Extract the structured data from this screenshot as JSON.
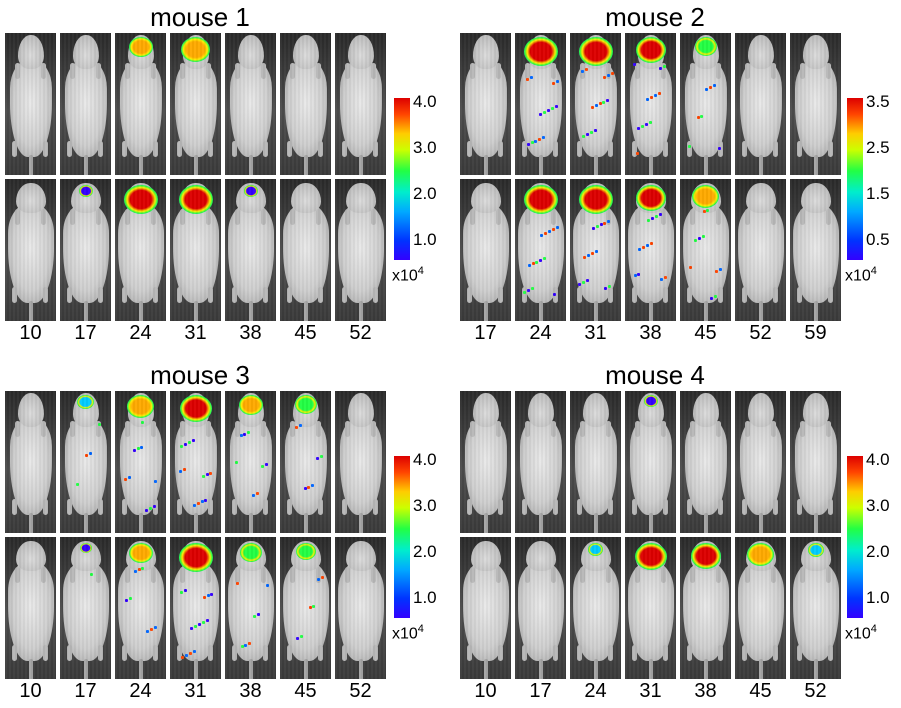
{
  "panels": [
    {
      "title": "mouse 1",
      "days": [
        "10",
        "17",
        "24",
        "31",
        "38",
        "45",
        "52"
      ],
      "scale_ticks": [
        "4.0",
        "3.0",
        "2.0",
        "1.0"
      ],
      "scale_unit_base": "x10",
      "scale_unit_exp": "4",
      "signal": {
        "top": [
          0,
          0,
          0.6,
          0.8,
          0,
          0,
          0
        ],
        "bottom": [
          0,
          0.15,
          1.0,
          1.0,
          0.15,
          0,
          0
        ]
      }
    },
    {
      "title": "mouse 2",
      "days": [
        "17",
        "24",
        "31",
        "38",
        "45",
        "52",
        "59"
      ],
      "scale_ticks": [
        "3.5",
        "2.5",
        "1.5",
        "0.5"
      ],
      "scale_unit_base": "x10",
      "scale_unit_exp": "4",
      "signal": {
        "top": [
          0,
          1.0,
          1.0,
          0.85,
          0.5,
          0,
          0
        ],
        "bottom": [
          0,
          1.0,
          1.0,
          0.85,
          0.7,
          0,
          0
        ]
      }
    },
    {
      "title": "mouse 3",
      "days": [
        "10",
        "17",
        "24",
        "31",
        "38",
        "45",
        "52"
      ],
      "scale_ticks": [
        "4.0",
        "3.0",
        "2.0",
        "1.0"
      ],
      "scale_unit_base": "x10",
      "scale_unit_exp": "4",
      "signal": {
        "top": [
          0,
          0.3,
          0.7,
          0.9,
          0.6,
          0.5,
          0
        ],
        "bottom": [
          0,
          0.1,
          0.6,
          1.0,
          0.5,
          0.4,
          0
        ]
      }
    },
    {
      "title": "mouse 4",
      "days": [
        "10",
        "17",
        "24",
        "31",
        "38",
        "45",
        "52"
      ],
      "scale_ticks": [
        "4.0",
        "3.0",
        "2.0",
        "1.0"
      ],
      "scale_unit_base": "x10",
      "scale_unit_exp": "4",
      "signal": {
        "top": [
          0,
          0,
          0,
          0.15,
          0,
          0,
          0
        ],
        "bottom": [
          0,
          0,
          0.2,
          0.9,
          0.85,
          0.7,
          0.25
        ]
      }
    }
  ],
  "colors": {
    "background": "#ffffff",
    "frame": "#3a3a3a",
    "signal_high": "#dd0000",
    "signal_mid": "#22ff44",
    "signal_low": "#3300ff"
  }
}
